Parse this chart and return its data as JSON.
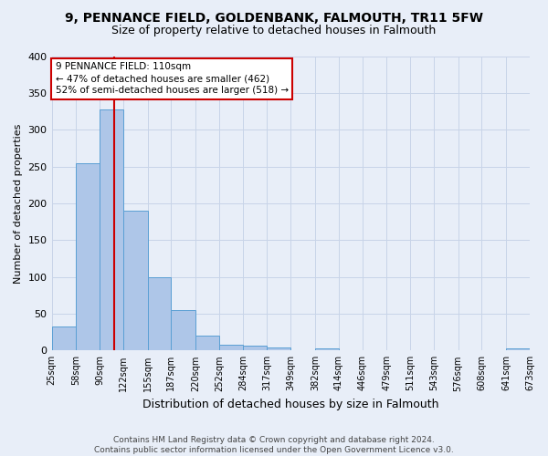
{
  "title": "9, PENNANCE FIELD, GOLDENBANK, FALMOUTH, TR11 5FW",
  "subtitle": "Size of property relative to detached houses in Falmouth",
  "xlabel": "Distribution of detached houses by size in Falmouth",
  "ylabel": "Number of detached properties",
  "categories": [
    "25sqm",
    "58sqm",
    "90sqm",
    "122sqm",
    "155sqm",
    "187sqm",
    "220sqm",
    "252sqm",
    "284sqm",
    "317sqm",
    "349sqm",
    "382sqm",
    "414sqm",
    "446sqm",
    "479sqm",
    "511sqm",
    "543sqm",
    "576sqm",
    "608sqm",
    "641sqm",
    "673sqm"
  ],
  "bin_edges": [
    25,
    58,
    90,
    122,
    155,
    187,
    220,
    252,
    284,
    317,
    349,
    382,
    414,
    446,
    479,
    511,
    543,
    576,
    608,
    641,
    673
  ],
  "heights": [
    33,
    255,
    328,
    190,
    100,
    55,
    20,
    8,
    6,
    4,
    0,
    3,
    0,
    0,
    0,
    0,
    0,
    0,
    0,
    3
  ],
  "bar_color": "#aec6e8",
  "bar_edge_color": "#5a9fd4",
  "vline_color": "#cc0000",
  "vline_x": 110,
  "annotation_text": "9 PENNANCE FIELD: 110sqm\n← 47% of detached houses are smaller (462)\n52% of semi-detached houses are larger (518) →",
  "annotation_box_color": "#ffffff",
  "annotation_box_edge": "#cc0000",
  "grid_color": "#c8d4e8",
  "bg_color": "#e8eef8",
  "footer": "Contains HM Land Registry data © Crown copyright and database right 2024.\nContains public sector information licensed under the Open Government Licence v3.0.",
  "ylim": [
    0,
    400
  ],
  "yticks": [
    0,
    50,
    100,
    150,
    200,
    250,
    300,
    350,
    400
  ],
  "title_fontsize": 10,
  "subtitle_fontsize": 9
}
